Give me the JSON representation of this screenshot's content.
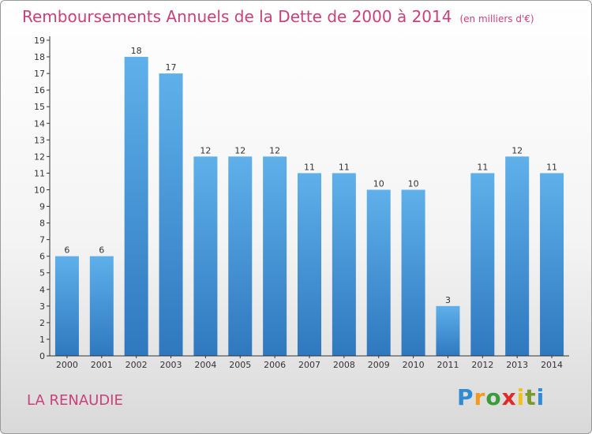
{
  "title": "Remboursements Annuels de la Dette de 2000 à 2014",
  "unit": "(en milliers d'€)",
  "town": "LA RENAUDIE",
  "logo": {
    "text": "Proxiti",
    "letters": [
      "P",
      "r",
      "o",
      "x",
      "i",
      "t",
      "i"
    ],
    "colors": [
      "#2e8bd4",
      "#f29a1f",
      "#3b9a3b",
      "#e02a2a",
      "#f2c01f",
      "#7a9a2e",
      "#2e8bd4"
    ]
  },
  "colors": {
    "bar_light": "#5fb0ea",
    "bar_dark": "#2f78bf",
    "title": "#c8417a",
    "axis": "#333333"
  },
  "chart_data": {
    "type": "bar",
    "categories": [
      "2000",
      "2001",
      "2002",
      "2003",
      "2004",
      "2005",
      "2006",
      "2007",
      "2008",
      "2009",
      "2010",
      "2011",
      "2012",
      "2013",
      "2014"
    ],
    "values": [
      6,
      6,
      18,
      17,
      12,
      12,
      12,
      11,
      11,
      10,
      10,
      3,
      11,
      12,
      11
    ],
    "ylim": [
      0,
      19
    ],
    "yticks": [
      0,
      1,
      2,
      3,
      4,
      5,
      6,
      7,
      8,
      9,
      10,
      11,
      12,
      13,
      14,
      15,
      16,
      17,
      18,
      19
    ],
    "grid": false,
    "data_labels": true
  }
}
